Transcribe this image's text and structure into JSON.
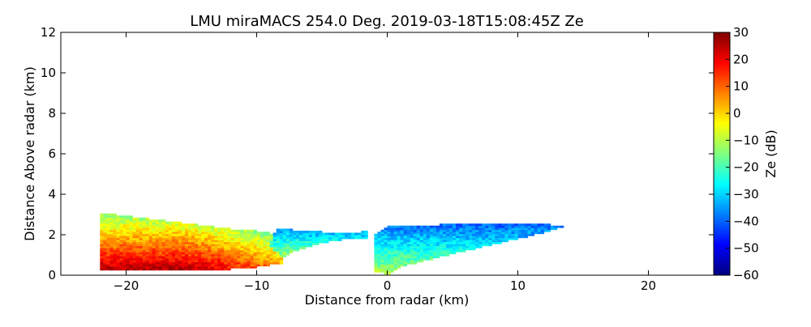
{
  "chart_data": {
    "type": "heatmap",
    "title": "LMU miraMACS 254.0 Deg. 2019-03-18T15:08:45Z  Ze",
    "xlabel": "Distance from radar (km)",
    "ylabel": "Distance Above radar  (km)",
    "xlim": [
      -25,
      25
    ],
    "ylim": [
      0,
      12
    ],
    "x_ticks": [
      -20,
      -10,
      0,
      10,
      20
    ],
    "x_tick_labels": [
      "−20",
      "−10",
      "0",
      "10",
      "20"
    ],
    "y_ticks": [
      0,
      2,
      4,
      6,
      8,
      10,
      12
    ],
    "y_tick_labels": [
      "0",
      "2",
      "4",
      "6",
      "8",
      "10",
      "12"
    ],
    "colorbar": {
      "label": "Ze (dB)",
      "min": -60,
      "max": 30,
      "ticks": [
        30,
        20,
        10,
        0,
        -10,
        -20,
        -30,
        -40,
        -50,
        -60
      ],
      "tick_labels": [
        "30",
        "20",
        "10",
        "0",
        "−10",
        "−20",
        "−30",
        "−40",
        "−50",
        "−60"
      ],
      "colormap": "jet",
      "colors": [
        "#00007f",
        "#0000ff",
        "#007fff",
        "#00ffff",
        "#7fff7f",
        "#ffff00",
        "#ff7f00",
        "#ff0000",
        "#7f0000"
      ]
    },
    "echo_regions": [
      {
        "name": "left-cloud",
        "polygon": [
          [
            -22,
            0.3
          ],
          [
            -22,
            3.1
          ],
          [
            -19,
            2.85
          ],
          [
            -15,
            2.55
          ],
          [
            -12,
            2.3
          ],
          [
            -10,
            2.2
          ],
          [
            -8.5,
            2.05
          ],
          [
            -8,
            0.6
          ],
          [
            -10,
            0.4
          ],
          [
            -12,
            0.3
          ],
          [
            -16,
            0.25
          ],
          [
            -22,
            0.3
          ]
        ],
        "ze_min": -20,
        "ze_max": 25
      },
      {
        "name": "middle-cloud",
        "polygon": [
          [
            -9,
            1.5
          ],
          [
            -8.5,
            2.3
          ],
          [
            -6,
            2.2
          ],
          [
            -3,
            2.05
          ],
          [
            -1.5,
            2.2
          ],
          [
            -1.5,
            1.75
          ],
          [
            -3,
            1.8
          ],
          [
            -5,
            1.6
          ],
          [
            -7,
            1.2
          ],
          [
            -8,
            0.8
          ],
          [
            -9,
            1.5
          ]
        ],
        "ze_min": -40,
        "ze_max": -10
      },
      {
        "name": "right-cloud",
        "polygon": [
          [
            -1,
            0.2
          ],
          [
            -1,
            2.0
          ],
          [
            0,
            2.4
          ],
          [
            4,
            2.5
          ],
          [
            8,
            2.6
          ],
          [
            12,
            2.55
          ],
          [
            13.5,
            2.4
          ],
          [
            12,
            2.1
          ],
          [
            8,
            1.5
          ],
          [
            4,
            0.9
          ],
          [
            1,
            0.4
          ],
          [
            0,
            0.05
          ],
          [
            -1,
            0.2
          ]
        ],
        "ze_min": -45,
        "ze_max": -10
      }
    ]
  }
}
